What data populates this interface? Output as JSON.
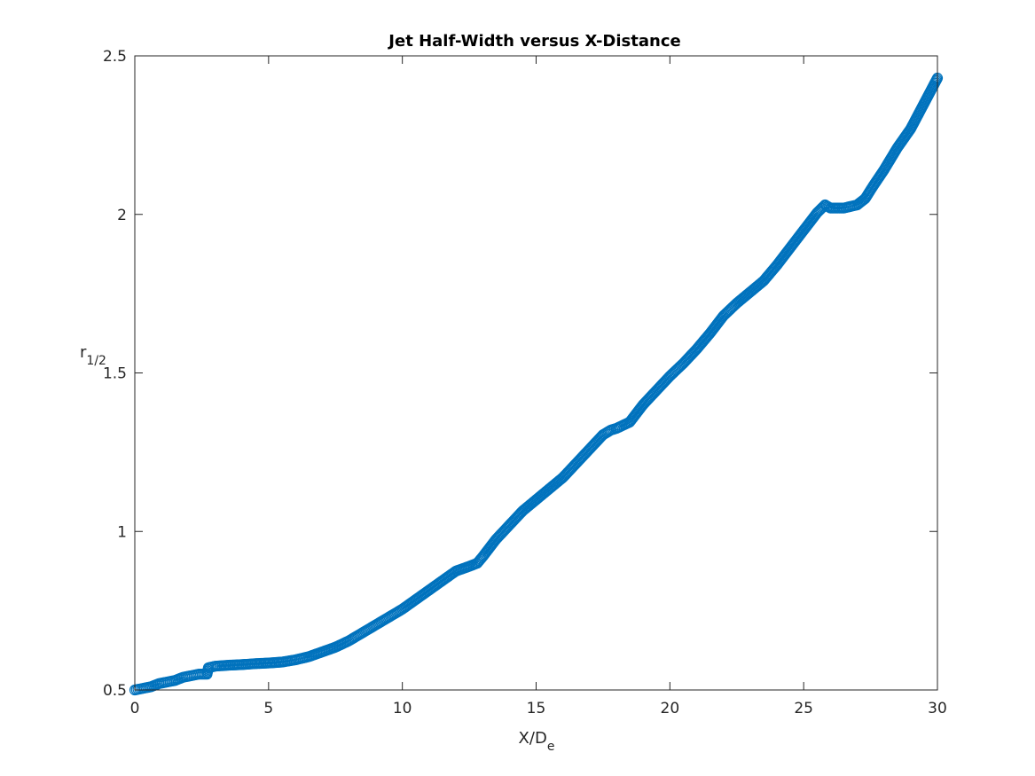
{
  "chart_data": {
    "type": "scatter",
    "title": "Jet Half-Width versus X-Distance",
    "xlabel": {
      "base": "X/D",
      "sub": "e"
    },
    "ylabel": {
      "base": "r",
      "sub": "1/2"
    },
    "xlim": [
      0,
      30
    ],
    "ylim": [
      0.5,
      2.5
    ],
    "xticks": [
      0,
      5,
      10,
      15,
      20,
      25,
      30
    ],
    "yticks": [
      0.5,
      1,
      1.5,
      2,
      2.5
    ],
    "xtick_labels": [
      "0",
      "5",
      "10",
      "15",
      "20",
      "25",
      "30"
    ],
    "ytick_labels": [
      "0.5",
      "1",
      "1.5",
      "2",
      "2.5"
    ],
    "grid": false,
    "marker": "open-circle",
    "series_color": "#0072BD",
    "series": [
      {
        "x": [
          0,
          0.3,
          0.6,
          0.9,
          1.2,
          1.5,
          1.8,
          2.1,
          2.4,
          2.7,
          2.75,
          3,
          3.5,
          4,
          4.5,
          5,
          5.5,
          6,
          6.5,
          7,
          7.5,
          8,
          8.5,
          9,
          9.5,
          10,
          10.5,
          11,
          11.5,
          12,
          12.5,
          12.8,
          13,
          13.5,
          14,
          14.5,
          15,
          15.5,
          16,
          16.5,
          17,
          17.5,
          17.8,
          18,
          18.5,
          19,
          19.5,
          20,
          20.5,
          21,
          21.5,
          22,
          22.5,
          23,
          23.5,
          24,
          24.5,
          25,
          25.5,
          25.8,
          26,
          26.5,
          27,
          27.3,
          27.6,
          28,
          28.5,
          29,
          29.5,
          30
        ],
        "y": [
          0.5,
          0.505,
          0.51,
          0.52,
          0.525,
          0.53,
          0.54,
          0.545,
          0.55,
          0.55,
          0.57,
          0.575,
          0.578,
          0.58,
          0.583,
          0.585,
          0.588,
          0.595,
          0.605,
          0.62,
          0.635,
          0.655,
          0.68,
          0.705,
          0.73,
          0.755,
          0.785,
          0.815,
          0.845,
          0.875,
          0.89,
          0.9,
          0.92,
          0.975,
          1.02,
          1.065,
          1.1,
          1.135,
          1.17,
          1.215,
          1.26,
          1.305,
          1.32,
          1.325,
          1.345,
          1.4,
          1.445,
          1.49,
          1.53,
          1.575,
          1.625,
          1.68,
          1.72,
          1.755,
          1.79,
          1.84,
          1.895,
          1.95,
          2.005,
          2.03,
          2.02,
          2.02,
          2.03,
          2.05,
          2.09,
          2.14,
          2.21,
          2.27,
          2.35,
          2.43
        ]
      }
    ]
  }
}
